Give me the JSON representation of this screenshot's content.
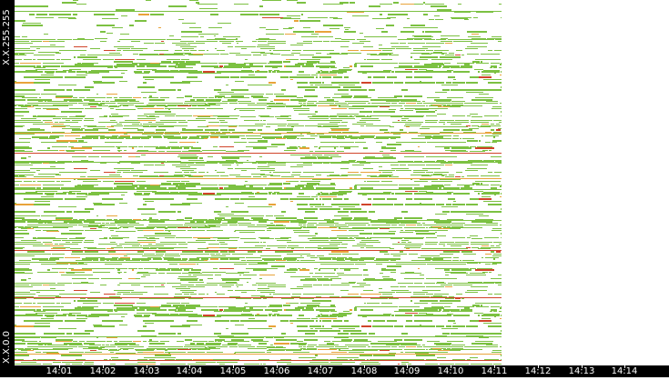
{
  "y_axis": {
    "top_label": "X.X.255.255",
    "bottom_label": "X.X.0.0"
  },
  "time_axis": {
    "ticks": [
      "14:01",
      "14:02",
      "14:03",
      "14:04",
      "14:05",
      "14:06",
      "14:07",
      "14:08",
      "14:09",
      "14:10",
      "14:11",
      "14:12",
      "14:13",
      "14:14"
    ]
  },
  "colors": {
    "background": "#ffffff",
    "axis_background": "#000000",
    "axis_text": "#ffffff",
    "low_activity": "#7cc142",
    "medium_activity": "#e8a33a",
    "high_activity": "#d0442a"
  }
}
